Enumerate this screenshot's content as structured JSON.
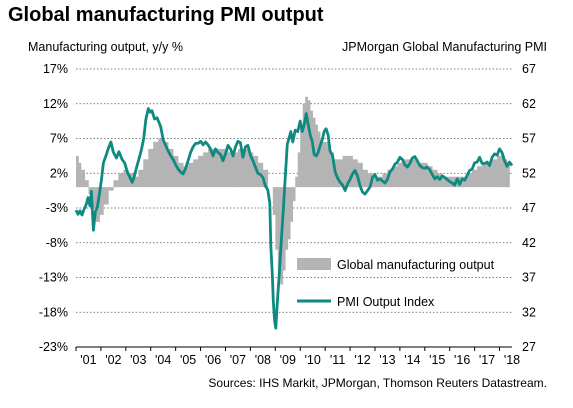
{
  "page": {
    "title": "Global manufacturing PMI output",
    "source": "Sources: IHS Markit, JPMorgan, Thomson Reuters Datastream."
  },
  "chart_data": {
    "type": "bar+line",
    "title": "Global manufacturing PMI output",
    "ylabel_left": "Manufacturing output, y/y %",
    "ylabel_right": "JPMorgan Global Manufacturing PMI",
    "yleft": {
      "lim": [
        -23,
        17
      ],
      "ticks": [
        17,
        12,
        7,
        2,
        -3,
        -8,
        -13,
        -18,
        -23
      ],
      "tick_labels": [
        "17%",
        "12%",
        "7%",
        "2%",
        "-3%",
        "-8%",
        "-13%",
        "-18%",
        "-23%"
      ]
    },
    "yright": {
      "lim": [
        27,
        67
      ],
      "ticks": [
        67,
        62,
        57,
        52,
        47,
        42,
        37,
        32,
        27
      ],
      "tick_labels": [
        "67",
        "62",
        "57",
        "52",
        "47",
        "42",
        "37",
        "32",
        "27"
      ]
    },
    "x_tick_labels": [
      "'01",
      "'02",
      "'03",
      "'04",
      "'05",
      "'06",
      "'07",
      "'08",
      "'09",
      "'10",
      "'11",
      "'12",
      "'13",
      "'14",
      "'15",
      "'16",
      "'17",
      "'18"
    ],
    "x_range": [
      2001.0,
      2018.5
    ],
    "grid": "horizontal dotted",
    "legend_position": "bottom-right",
    "colors": {
      "bars": "#b4b4b4",
      "line": "#0f8a80"
    },
    "series": [
      {
        "name": "Global manufacturing output",
        "axis": "left",
        "kind": "bar",
        "points": [
          [
            2001.0,
            4.5
          ],
          [
            2001.1,
            3.5
          ],
          [
            2001.2,
            2.5
          ],
          [
            2001.35,
            1.0
          ],
          [
            2001.5,
            -1.0
          ],
          [
            2001.65,
            -3.0
          ],
          [
            2001.8,
            -5.0
          ],
          [
            2001.95,
            -4.0
          ],
          [
            2002.1,
            -2.5
          ],
          [
            2002.3,
            -0.5
          ],
          [
            2002.5,
            1.0
          ],
          [
            2002.7,
            2.0
          ],
          [
            2002.9,
            2.5
          ],
          [
            2003.1,
            2.0
          ],
          [
            2003.3,
            1.5
          ],
          [
            2003.5,
            2.5
          ],
          [
            2003.7,
            4.0
          ],
          [
            2003.9,
            5.5
          ],
          [
            2004.1,
            6.5
          ],
          [
            2004.3,
            7.0
          ],
          [
            2004.5,
            6.5
          ],
          [
            2004.7,
            5.5
          ],
          [
            2004.9,
            4.5
          ],
          [
            2005.1,
            3.5
          ],
          [
            2005.3,
            3.0
          ],
          [
            2005.5,
            3.5
          ],
          [
            2005.7,
            4.0
          ],
          [
            2005.9,
            4.5
          ],
          [
            2006.1,
            5.0
          ],
          [
            2006.3,
            5.5
          ],
          [
            2006.5,
            5.5
          ],
          [
            2006.7,
            5.5
          ],
          [
            2006.9,
            5.5
          ],
          [
            2007.1,
            5.0
          ],
          [
            2007.3,
            5.0
          ],
          [
            2007.5,
            5.5
          ],
          [
            2007.7,
            5.5
          ],
          [
            2007.9,
            5.0
          ],
          [
            2008.1,
            4.5
          ],
          [
            2008.3,
            3.5
          ],
          [
            2008.5,
            2.5
          ],
          [
            2008.7,
            0.0
          ],
          [
            2008.9,
            -4.0
          ],
          [
            2009.0,
            -9.0
          ],
          [
            2009.1,
            -12.5
          ],
          [
            2009.2,
            -14.0
          ],
          [
            2009.3,
            -12.0
          ],
          [
            2009.4,
            -9.0
          ],
          [
            2009.5,
            -7.5
          ],
          [
            2009.6,
            -5.0
          ],
          [
            2009.7,
            -2.0
          ],
          [
            2009.8,
            1.5
          ],
          [
            2009.9,
            5.0
          ],
          [
            2010.0,
            9.0
          ],
          [
            2010.1,
            12.0
          ],
          [
            2010.2,
            13.0
          ],
          [
            2010.3,
            12.5
          ],
          [
            2010.4,
            11.0
          ],
          [
            2010.5,
            10.0
          ],
          [
            2010.6,
            9.0
          ],
          [
            2010.7,
            8.0
          ],
          [
            2010.8,
            7.0
          ],
          [
            2010.9,
            6.5
          ],
          [
            2011.0,
            6.5
          ],
          [
            2011.1,
            6.0
          ],
          [
            2011.2,
            5.0
          ],
          [
            2011.35,
            4.0
          ],
          [
            2011.5,
            4.0
          ],
          [
            2011.7,
            4.5
          ],
          [
            2011.9,
            4.5
          ],
          [
            2012.1,
            4.0
          ],
          [
            2012.3,
            3.5
          ],
          [
            2012.5,
            2.5
          ],
          [
            2012.7,
            2.0
          ],
          [
            2012.9,
            1.5
          ],
          [
            2013.1,
            1.5
          ],
          [
            2013.3,
            2.0
          ],
          [
            2013.5,
            2.5
          ],
          [
            2013.7,
            3.0
          ],
          [
            2013.9,
            3.5
          ],
          [
            2014.1,
            4.0
          ],
          [
            2014.3,
            4.0
          ],
          [
            2014.5,
            4.0
          ],
          [
            2014.7,
            3.5
          ],
          [
            2014.9,
            3.5
          ],
          [
            2015.1,
            3.0
          ],
          [
            2015.3,
            2.5
          ],
          [
            2015.5,
            2.0
          ],
          [
            2015.7,
            1.5
          ],
          [
            2015.9,
            1.5
          ],
          [
            2016.1,
            1.5
          ],
          [
            2016.3,
            1.5
          ],
          [
            2016.5,
            1.5
          ],
          [
            2016.7,
            2.0
          ],
          [
            2016.9,
            2.5
          ],
          [
            2017.1,
            3.0
          ],
          [
            2017.3,
            3.5
          ],
          [
            2017.5,
            3.5
          ],
          [
            2017.7,
            4.0
          ],
          [
            2017.9,
            4.5
          ],
          [
            2018.0,
            4.5
          ],
          [
            2018.1,
            4.5
          ],
          [
            2018.2,
            4.0
          ],
          [
            2018.3,
            3.5
          ]
        ]
      },
      {
        "name": "PMI Output Index",
        "axis": "right",
        "kind": "line",
        "points": [
          [
            2001.0,
            46.7
          ],
          [
            2001.08,
            46.1
          ],
          [
            2001.16,
            46.6
          ],
          [
            2001.24,
            46.0
          ],
          [
            2001.32,
            46.8
          ],
          [
            2001.4,
            47.4
          ],
          [
            2001.48,
            48.5
          ],
          [
            2001.56,
            47.3
          ],
          [
            2001.62,
            49.4
          ],
          [
            2001.7,
            43.8
          ],
          [
            2001.78,
            46.5
          ],
          [
            2001.86,
            47.2
          ],
          [
            2001.94,
            49.0
          ],
          [
            2002.02,
            51.0
          ],
          [
            2002.1,
            53.5
          ],
          [
            2002.2,
            54.5
          ],
          [
            2002.3,
            55.6
          ],
          [
            2002.4,
            56.5
          ],
          [
            2002.5,
            55.0
          ],
          [
            2002.62,
            54.2
          ],
          [
            2002.72,
            55.1
          ],
          [
            2002.85,
            54.0
          ],
          [
            2002.95,
            53.5
          ],
          [
            2003.08,
            52.0
          ],
          [
            2003.15,
            51.5
          ],
          [
            2003.25,
            50.7
          ],
          [
            2003.32,
            51.3
          ],
          [
            2003.42,
            52.7
          ],
          [
            2003.52,
            54.0
          ],
          [
            2003.62,
            55.3
          ],
          [
            2003.72,
            57.1
          ],
          [
            2003.8,
            59.7
          ],
          [
            2003.9,
            61.3
          ],
          [
            2003.98,
            60.8
          ],
          [
            2004.05,
            61.0
          ],
          [
            2004.15,
            59.8
          ],
          [
            2004.25,
            60.0
          ],
          [
            2004.33,
            59.3
          ],
          [
            2004.4,
            58.7
          ],
          [
            2004.5,
            56.8
          ],
          [
            2004.6,
            56.0
          ],
          [
            2004.7,
            55.2
          ],
          [
            2004.8,
            54.5
          ],
          [
            2004.9,
            54.0
          ],
          [
            2005.0,
            53.2
          ],
          [
            2005.1,
            52.6
          ],
          [
            2005.2,
            52.2
          ],
          [
            2005.3,
            51.9
          ],
          [
            2005.4,
            52.7
          ],
          [
            2005.5,
            53.8
          ],
          [
            2005.6,
            55.0
          ],
          [
            2005.7,
            55.8
          ],
          [
            2005.8,
            56.3
          ],
          [
            2005.9,
            56.3
          ],
          [
            2006.0,
            56.6
          ],
          [
            2006.1,
            56.1
          ],
          [
            2006.2,
            56.5
          ],
          [
            2006.3,
            56.1
          ],
          [
            2006.4,
            55.5
          ],
          [
            2006.5,
            54.5
          ],
          [
            2006.6,
            55.5
          ],
          [
            2006.7,
            55.0
          ],
          [
            2006.8,
            54.7
          ],
          [
            2006.9,
            53.8
          ],
          [
            2007.0,
            54.8
          ],
          [
            2007.1,
            56.0
          ],
          [
            2007.2,
            55.5
          ],
          [
            2007.3,
            54.5
          ],
          [
            2007.4,
            55.8
          ],
          [
            2007.5,
            56.6
          ],
          [
            2007.6,
            56.4
          ],
          [
            2007.7,
            54.3
          ],
          [
            2007.8,
            55.8
          ],
          [
            2007.9,
            56.0
          ],
          [
            2008.0,
            54.6
          ],
          [
            2008.1,
            53.8
          ],
          [
            2008.2,
            52.9
          ],
          [
            2008.3,
            52.0
          ],
          [
            2008.4,
            51.8
          ],
          [
            2008.5,
            51.4
          ],
          [
            2008.6,
            50.2
          ],
          [
            2008.7,
            49.6
          ],
          [
            2008.78,
            47.7
          ],
          [
            2008.82,
            41.6
          ],
          [
            2008.88,
            37.5
          ],
          [
            2008.92,
            33.6
          ],
          [
            2008.97,
            30.8
          ],
          [
            2009.02,
            29.7
          ],
          [
            2009.08,
            33.4
          ],
          [
            2009.16,
            37.5
          ],
          [
            2009.24,
            42.3
          ],
          [
            2009.32,
            46.7
          ],
          [
            2009.4,
            51.5
          ],
          [
            2009.48,
            56.2
          ],
          [
            2009.55,
            57.0
          ],
          [
            2009.62,
            58.0
          ],
          [
            2009.7,
            56.5
          ],
          [
            2009.8,
            58.2
          ],
          [
            2009.9,
            58.0
          ],
          [
            2010.0,
            59.5
          ],
          [
            2010.08,
            58.0
          ],
          [
            2010.16,
            59.0
          ],
          [
            2010.24,
            60.6
          ],
          [
            2010.32,
            59.0
          ],
          [
            2010.4,
            57.5
          ],
          [
            2010.48,
            56.6
          ],
          [
            2010.56,
            54.7
          ],
          [
            2010.64,
            54.5
          ],
          [
            2010.72,
            55.0
          ],
          [
            2010.8,
            56.0
          ],
          [
            2010.88,
            56.8
          ],
          [
            2010.96,
            58.0
          ],
          [
            2011.04,
            58.4
          ],
          [
            2011.12,
            57.5
          ],
          [
            2011.2,
            55.2
          ],
          [
            2011.3,
            54.5
          ],
          [
            2011.4,
            52.2
          ],
          [
            2011.5,
            51.3
          ],
          [
            2011.6,
            50.7
          ],
          [
            2011.7,
            50.3
          ],
          [
            2011.8,
            49.5
          ],
          [
            2011.9,
            50.5
          ],
          [
            2012.0,
            51.1
          ],
          [
            2012.1,
            51.9
          ],
          [
            2012.2,
            52.4
          ],
          [
            2012.3,
            51.6
          ],
          [
            2012.4,
            50.2
          ],
          [
            2012.5,
            49.3
          ],
          [
            2012.6,
            49.0
          ],
          [
            2012.7,
            49.5
          ],
          [
            2012.8,
            50.0
          ],
          [
            2012.9,
            51.4
          ],
          [
            2013.0,
            51.8
          ],
          [
            2013.1,
            51.0
          ],
          [
            2013.2,
            51.2
          ],
          [
            2013.3,
            50.9
          ],
          [
            2013.4,
            50.6
          ],
          [
            2013.5,
            51.1
          ],
          [
            2013.6,
            52.2
          ],
          [
            2013.7,
            52.6
          ],
          [
            2013.8,
            53.3
          ],
          [
            2013.9,
            53.6
          ],
          [
            2014.0,
            54.3
          ],
          [
            2014.1,
            54.0
          ],
          [
            2014.2,
            53.2
          ],
          [
            2014.3,
            52.9
          ],
          [
            2014.4,
            53.4
          ],
          [
            2014.5,
            54.2
          ],
          [
            2014.6,
            54.4
          ],
          [
            2014.7,
            53.8
          ],
          [
            2014.8,
            53.1
          ],
          [
            2014.9,
            52.8
          ],
          [
            2015.0,
            52.7
          ],
          [
            2015.1,
            52.9
          ],
          [
            2015.2,
            52.5
          ],
          [
            2015.3,
            51.8
          ],
          [
            2015.4,
            51.2
          ],
          [
            2015.5,
            51.5
          ],
          [
            2015.6,
            51.1
          ],
          [
            2015.7,
            51.6
          ],
          [
            2015.8,
            51.4
          ],
          [
            2015.9,
            51.1
          ],
          [
            2016.0,
            50.8
          ],
          [
            2016.1,
            50.6
          ],
          [
            2016.2,
            50.3
          ],
          [
            2016.3,
            51.2
          ],
          [
            2016.4,
            50.4
          ],
          [
            2016.5,
            51.2
          ],
          [
            2016.6,
            51.0
          ],
          [
            2016.7,
            51.7
          ],
          [
            2016.8,
            52.4
          ],
          [
            2016.9,
            52.6
          ],
          [
            2017.0,
            53.5
          ],
          [
            2017.1,
            53.6
          ],
          [
            2017.2,
            54.3
          ],
          [
            2017.3,
            53.4
          ],
          [
            2017.4,
            53.4
          ],
          [
            2017.5,
            53.6
          ],
          [
            2017.6,
            53.1
          ],
          [
            2017.7,
            54.3
          ],
          [
            2017.8,
            54.8
          ],
          [
            2017.9,
            54.6
          ],
          [
            2018.0,
            55.5
          ],
          [
            2018.1,
            55.0
          ],
          [
            2018.2,
            53.8
          ],
          [
            2018.3,
            53.0
          ],
          [
            2018.4,
            53.6
          ],
          [
            2018.5,
            53.1
          ]
        ]
      }
    ]
  }
}
